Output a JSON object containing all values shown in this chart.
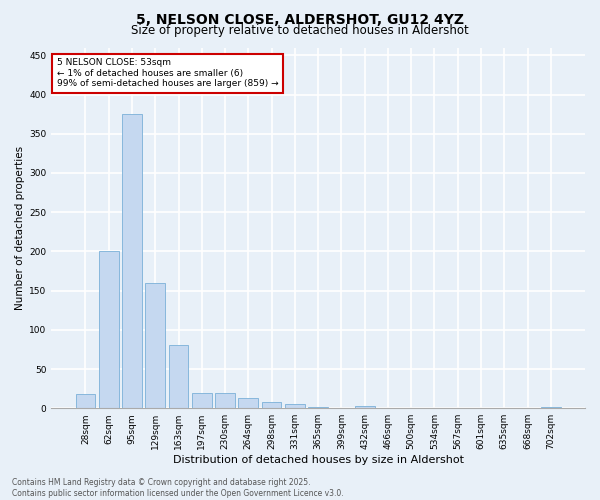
{
  "title": "5, NELSON CLOSE, ALDERSHOT, GU12 4YZ",
  "subtitle": "Size of property relative to detached houses in Aldershot",
  "xlabel": "Distribution of detached houses by size in Aldershot",
  "ylabel": "Number of detached properties",
  "categories": [
    "28sqm",
    "62sqm",
    "95sqm",
    "129sqm",
    "163sqm",
    "197sqm",
    "230sqm",
    "264sqm",
    "298sqm",
    "331sqm",
    "365sqm",
    "399sqm",
    "432sqm",
    "466sqm",
    "500sqm",
    "534sqm",
    "567sqm",
    "601sqm",
    "635sqm",
    "668sqm",
    "702sqm"
  ],
  "values": [
    18,
    200,
    375,
    160,
    80,
    20,
    20,
    13,
    8,
    5,
    2,
    0,
    3,
    0,
    0,
    0,
    0,
    0,
    0,
    0,
    2
  ],
  "bar_color": "#c5d8f0",
  "bar_edge_color": "#7ab0d8",
  "annotation_box_text": "5 NELSON CLOSE: 53sqm\n← 1% of detached houses are smaller (6)\n99% of semi-detached houses are larger (859) →",
  "annotation_box_color": "#ffffff",
  "annotation_box_edge_color": "#cc0000",
  "background_color": "#e8f0f8",
  "grid_color": "#ffffff",
  "ylim": [
    0,
    460
  ],
  "yticks": [
    0,
    50,
    100,
    150,
    200,
    250,
    300,
    350,
    400,
    450
  ],
  "footer_line1": "Contains HM Land Registry data © Crown copyright and database right 2025.",
  "footer_line2": "Contains public sector information licensed under the Open Government Licence v3.0.",
  "title_fontsize": 10,
  "subtitle_fontsize": 8.5,
  "tick_fontsize": 6.5,
  "ylabel_fontsize": 7.5,
  "xlabel_fontsize": 8,
  "annotation_fontsize": 6.5,
  "footer_fontsize": 5.5
}
